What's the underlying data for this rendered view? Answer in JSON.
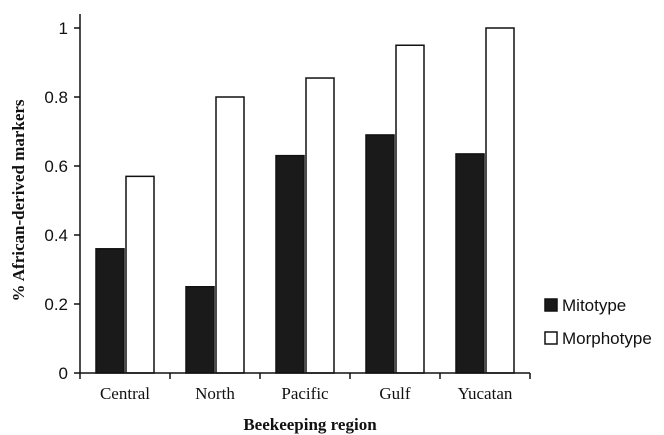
{
  "chart_data": {
    "type": "bar",
    "title": "",
    "xlabel": "Beekeeping region",
    "ylabel": "% African-derived markers",
    "categories": [
      "Central",
      "North",
      "Pacific",
      "Gulf",
      "Yucatan"
    ],
    "series": [
      {
        "name": "Mitotype",
        "values": [
          0.36,
          0.25,
          0.63,
          0.69,
          0.635
        ],
        "fill": "#1a1a1a"
      },
      {
        "name": "Morphotype",
        "values": [
          0.57,
          0.8,
          0.855,
          0.95,
          1.0
        ],
        "fill": "#ffffff"
      }
    ],
    "ylim": [
      0,
      1
    ],
    "yticks": [
      0,
      0.2,
      0.4,
      0.6,
      0.8,
      1
    ],
    "ytick_labels": [
      "0",
      "0.2",
      "0.4",
      "0.6",
      "0.8",
      "1"
    ],
    "grid": false,
    "legend_position": "right"
  }
}
